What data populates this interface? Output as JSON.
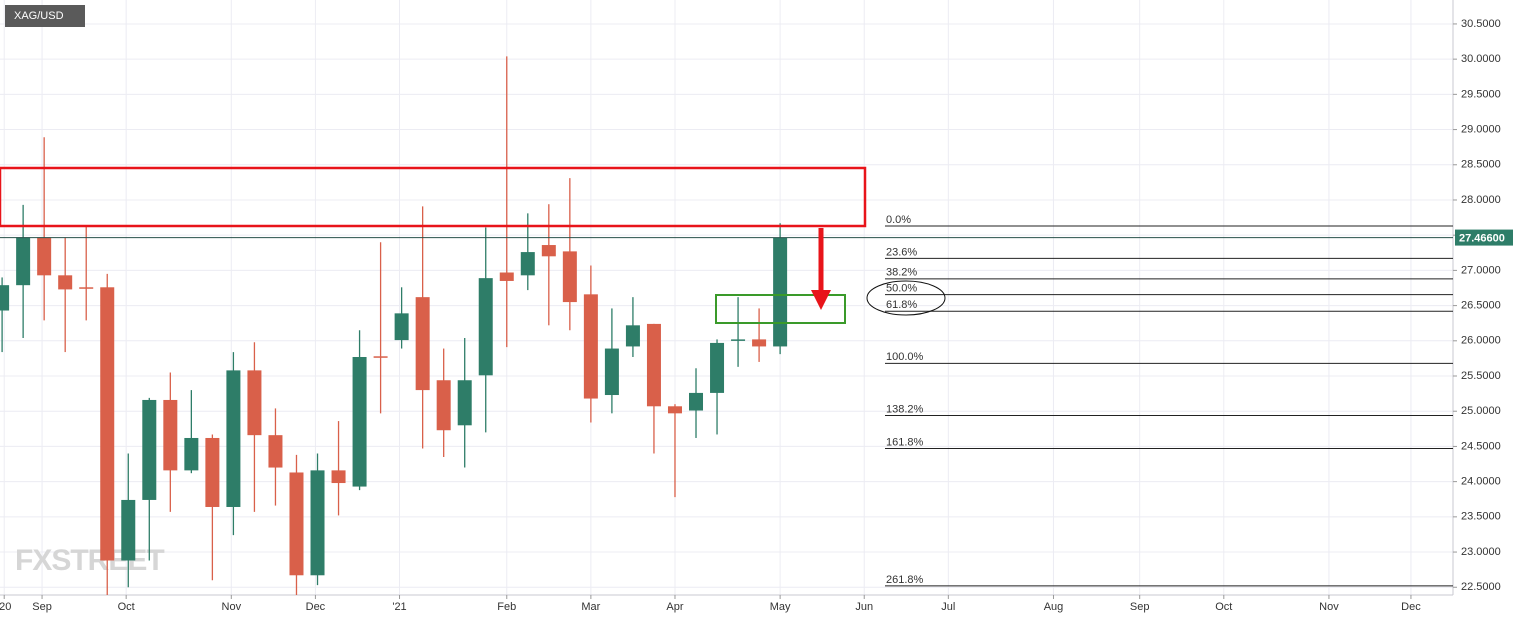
{
  "chart_data": {
    "type": "candlestick",
    "title": "XAG/USD",
    "watermark": "FXSTREET",
    "up_color": "#2e7d68",
    "down_color": "#d9604a",
    "grid": true,
    "x": [
      0,
      1,
      2,
      3,
      4,
      5,
      6,
      7,
      8,
      9,
      10,
      11,
      12,
      13,
      14,
      15,
      16,
      17,
      18,
      19,
      20,
      21,
      22,
      23,
      24,
      25,
      26,
      27,
      28,
      29,
      30,
      31,
      32,
      33,
      34,
      35,
      36,
      37
    ],
    "open": [
      26.43,
      26.79,
      27.47,
      26.93,
      26.76,
      26.76,
      22.88,
      23.74,
      25.16,
      24.16,
      24.62,
      23.64,
      25.58,
      24.66,
      24.13,
      22.67,
      24.16,
      23.93,
      25.78,
      26.01,
      26.62,
      25.44,
      24.8,
      25.51,
      26.97,
      26.93,
      27.36,
      27.27,
      26.66,
      25.23,
      25.92,
      26.24,
      25.07,
      25.01,
      25.26,
      26.0,
      26.02,
      25.92
    ],
    "high": [
      26.9,
      27.93,
      28.89,
      27.47,
      27.63,
      26.95,
      24.4,
      25.19,
      25.55,
      25.3,
      24.67,
      25.84,
      25.98,
      25.04,
      24.38,
      24.4,
      24.86,
      26.15,
      27.4,
      26.76,
      27.91,
      25.89,
      26.04,
      27.61,
      30.04,
      27.81,
      27.94,
      28.31,
      27.07,
      26.46,
      26.62,
      26.24,
      25.1,
      25.61,
      26.02,
      26.62,
      26.46,
      27.67
    ],
    "low": [
      25.84,
      26.04,
      26.29,
      25.84,
      26.29,
      22.39,
      22.5,
      22.88,
      23.57,
      24.12,
      22.6,
      23.24,
      23.57,
      23.66,
      22.39,
      22.53,
      23.52,
      23.88,
      24.97,
      25.89,
      24.47,
      24.35,
      24.2,
      24.7,
      25.91,
      26.72,
      26.22,
      26.15,
      24.84,
      24.97,
      25.77,
      24.4,
      23.78,
      24.62,
      24.67,
      25.63,
      25.7,
      25.81
    ],
    "close": [
      26.79,
      27.47,
      26.93,
      26.73,
      26.75,
      22.88,
      23.74,
      25.16,
      24.16,
      24.62,
      23.64,
      25.58,
      24.66,
      24.2,
      22.67,
      24.16,
      23.98,
      25.77,
      25.77,
      26.39,
      25.3,
      24.73,
      25.44,
      26.89,
      26.85,
      27.26,
      27.2,
      26.55,
      25.18,
      25.89,
      26.22,
      25.07,
      24.97,
      25.26,
      25.97,
      26.02,
      25.92,
      27.466
    ],
    "xlim": [
      -0.1,
      69
    ],
    "xticks": [
      {
        "value": 0.1,
        "label": "'20"
      },
      {
        "value": 1.9,
        "label": "Sep"
      },
      {
        "value": 5.9,
        "label": "Oct"
      },
      {
        "value": 10.9,
        "label": "Nov"
      },
      {
        "value": 14.9,
        "label": "Dec"
      },
      {
        "value": 18.9,
        "label": "'21"
      },
      {
        "value": 24,
        "label": "Feb"
      },
      {
        "value": 28,
        "label": "Mar"
      },
      {
        "value": 32,
        "label": "Apr"
      },
      {
        "value": 37,
        "label": "May"
      },
      {
        "value": 41,
        "label": "Jun"
      },
      {
        "value": 45,
        "label": "Jul"
      },
      {
        "value": 50,
        "label": "Aug"
      },
      {
        "value": 54.1,
        "label": "Sep"
      },
      {
        "value": 58.1,
        "label": "Oct"
      },
      {
        "value": 63.1,
        "label": "Nov"
      },
      {
        "value": 67,
        "label": "Dec"
      }
    ],
    "ylim": [
      22.39,
      30.84
    ],
    "yticks": [
      {
        "value": 22.5,
        "label": "22.5000"
      },
      {
        "value": 23,
        "label": "23.0000"
      },
      {
        "value": 23.5,
        "label": "23.5000"
      },
      {
        "value": 24,
        "label": "24.0000"
      },
      {
        "value": 24.5,
        "label": "24.5000"
      },
      {
        "value": 25,
        "label": "25.0000"
      },
      {
        "value": 25.5,
        "label": "25.5000"
      },
      {
        "value": 26,
        "label": "26.0000"
      },
      {
        "value": 26.5,
        "label": "26.5000"
      },
      {
        "value": 27,
        "label": "27.0000"
      },
      {
        "value": 27.5,
        "label": "27.5000"
      },
      {
        "value": 28,
        "label": "28.0000"
      },
      {
        "value": 28.5,
        "label": "28.5000"
      },
      {
        "value": 29,
        "label": "29.0000"
      },
      {
        "value": 29.5,
        "label": "29.5000"
      },
      {
        "value": 30,
        "label": "30.0000"
      },
      {
        "value": 30.5,
        "label": "30.5000"
      }
    ],
    "last_price": {
      "value": 27.466,
      "label": "27.46600"
    },
    "fib_levels": [
      {
        "label": "0.0%",
        "price": 27.63
      },
      {
        "label": "23.6%",
        "price": 27.17
      },
      {
        "label": "38.2%",
        "price": 26.88
      },
      {
        "label": "50.0%",
        "price": 26.655
      },
      {
        "label": "61.8%",
        "price": 26.42
      },
      {
        "label": "100.0%",
        "price": 25.68
      },
      {
        "label": "138.2%",
        "price": 24.94
      },
      {
        "label": "161.8%",
        "price": 24.47
      },
      {
        "label": "261.8%",
        "price": 22.52
      }
    ]
  }
}
